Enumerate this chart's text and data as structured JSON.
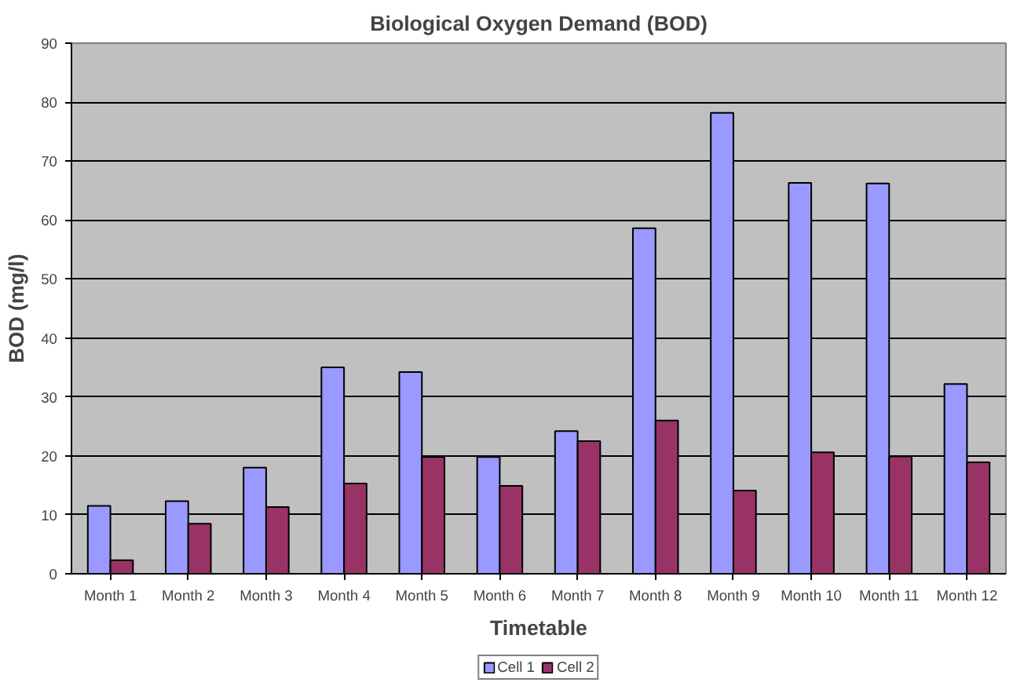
{
  "chart_data": {
    "type": "bar",
    "title": "Biological Oxygen Demand (BOD)",
    "xlabel": "Timetable",
    "ylabel": "BOD (mg/l)",
    "categories": [
      "Month 1",
      "Month 2",
      "Month 3",
      "Month 4",
      "Month 5",
      "Month 6",
      "Month 7",
      "Month 8",
      "Month 9",
      "Month 10",
      "Month 11",
      "Month 12"
    ],
    "series": [
      {
        "name": "Cell 1",
        "color": "#9999ff",
        "values": [
          11.5,
          12.3,
          18,
          35,
          34.2,
          19.8,
          24.2,
          58.6,
          78.2,
          66.3,
          66.2,
          32.2
        ]
      },
      {
        "name": "Cell 2",
        "color": "#993366",
        "values": [
          2.3,
          8.5,
          11.3,
          15.3,
          19.8,
          14.9,
          22.5,
          26,
          14.1,
          20.6,
          19.9,
          18.9
        ]
      }
    ],
    "ylim": [
      0,
      90
    ],
    "yticks": [
      0,
      10,
      20,
      30,
      40,
      50,
      60,
      70,
      80,
      90
    ],
    "grid": "y",
    "legend": "bottom"
  }
}
